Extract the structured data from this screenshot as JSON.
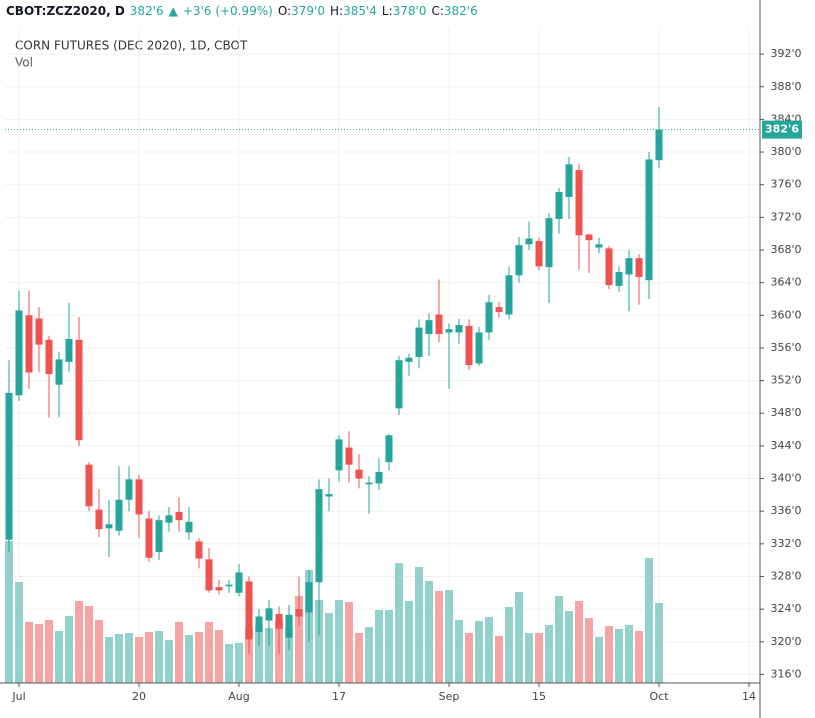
{
  "header": {
    "symbol": "CBOT:ZCZ2020, D",
    "last": "382'6",
    "arrow": "▲",
    "change": "+3'6 (+0.99%)",
    "ohlc": [
      {
        "label": "O:",
        "value": "379'0"
      },
      {
        "label": "H:",
        "value": "385'4"
      },
      {
        "label": "L:",
        "value": "378'0"
      },
      {
        "label": "C:",
        "value": "382'6"
      }
    ]
  },
  "chart_data": {
    "type": "candlestick",
    "title": "CORN FUTURES (DEC 2020), 1D, CBOT",
    "volume_label": "Vol",
    "categories": [
      null,
      "Jul",
      null,
      null,
      null,
      null,
      null,
      null,
      null,
      null,
      null,
      null,
      null,
      "20",
      null,
      null,
      null,
      null,
      null,
      null,
      null,
      null,
      null,
      "Aug",
      null,
      null,
      null,
      null,
      null,
      null,
      null,
      null,
      null,
      "17",
      null,
      null,
      null,
      null,
      null,
      null,
      null,
      null,
      null,
      null,
      "Sep",
      null,
      null,
      null,
      null,
      null,
      null,
      null,
      null,
      "15",
      null,
      null,
      null,
      null,
      null,
      null,
      null,
      null,
      null,
      null,
      null,
      "Oct",
      null,
      null,
      null,
      null,
      null,
      null,
      null,
      null,
      "14"
    ],
    "open": [
      332.5,
      350.2,
      360,
      359.6,
      357,
      351.5,
      354.3,
      357,
      341.7,
      336.2,
      333.9,
      333.6,
      337.4,
      339.9,
      335.1,
      331,
      334.6,
      335.9,
      333.4,
      332.3,
      330.1,
      326.7,
      326.8,
      326,
      327.4,
      321.2,
      322.6,
      323.4,
      320.5,
      324,
      323.6,
      327.3,
      337.8,
      341,
      343.8,
      341.1,
      339.3,
      339.4,
      342,
      348.6,
      354.3,
      354.9,
      357.7,
      360.1,
      357.9,
      357.9,
      358.7,
      354.1,
      357.9,
      361,
      360.1,
      364.9,
      368.7,
      369.1,
      365.9,
      371.8,
      374.5,
      377.8,
      369.9,
      368.3,
      368.2,
      363.6,
      365,
      367,
      364.3,
      379,
      null,
      null,
      null,
      null,
      null,
      null,
      null,
      null,
      null
    ],
    "high": [
      354.5,
      363,
      363,
      361,
      357.5,
      355.5,
      361.5,
      359.8,
      342,
      338.7,
      337.4,
      341.5,
      341.5,
      340.5,
      336,
      335.5,
      336.5,
      337.7,
      336.5,
      332.7,
      331.5,
      327.6,
      327.6,
      329.5,
      328,
      324,
      325.1,
      324.3,
      324.5,
      328,
      328.8,
      339.9,
      340,
      345.3,
      345.8,
      343,
      340.3,
      342.5,
      345.5,
      355,
      355.3,
      359.5,
      360.2,
      364.4,
      359,
      359.6,
      359.5,
      358.6,
      362.5,
      361.6,
      366,
      369.6,
      371.5,
      369.5,
      372.5,
      375.6,
      379.4,
      378.6,
      370,
      369.5,
      368.5,
      366,
      368,
      367.5,
      380,
      385.5,
      null,
      null,
      null,
      null,
      null,
      null,
      null,
      null,
      null
    ],
    "low": [
      331,
      349.5,
      351,
      353,
      347.5,
      347.5,
      353,
      344,
      336,
      332.8,
      330.4,
      333,
      336,
      332.7,
      329.8,
      330,
      333.5,
      333.5,
      332.5,
      329,
      326,
      325.8,
      326,
      325.6,
      318.5,
      319.5,
      319.5,
      318.5,
      319,
      322,
      320,
      320.8,
      336,
      339.6,
      339.5,
      338.8,
      335.7,
      338.6,
      341,
      347.8,
      352.6,
      353.5,
      355,
      356.7,
      351,
      356.5,
      353.3,
      353.8,
      357,
      359.7,
      359.5,
      364,
      368,
      365.5,
      361.5,
      370,
      371.8,
      365.6,
      365.2,
      367.6,
      363.2,
      362.9,
      360.5,
      361.3,
      362,
      378,
      null,
      null,
      null,
      null,
      null,
      null,
      null,
      null,
      null
    ],
    "close": [
      350.5,
      360.6,
      353,
      356.4,
      352.8,
      354.6,
      357.1,
      344.7,
      336.6,
      333.8,
      334.4,
      337.4,
      339.9,
      335.6,
      330.3,
      334.9,
      335.5,
      334.9,
      334.7,
      330.2,
      326.3,
      326.3,
      327,
      328.5,
      320.3,
      323.1,
      324.1,
      321.6,
      323.3,
      323.1,
      327.3,
      338.7,
      338.1,
      344.8,
      341.7,
      340,
      339.5,
      340.8,
      345.3,
      354.5,
      354.8,
      358.5,
      359.4,
      357.7,
      358.3,
      358.8,
      353.9,
      357.9,
      361.6,
      360.4,
      364.9,
      368.6,
      369.4,
      366,
      371.9,
      375.1,
      378.5,
      369.8,
      369.2,
      368.7,
      363.7,
      365.3,
      367,
      364.7,
      379.1,
      382.75,
      null,
      null,
      null,
      null,
      null,
      null,
      null,
      null,
      null
    ],
    "volume": [
      142,
      101,
      61,
      59,
      63,
      52,
      67,
      82,
      77,
      63,
      46,
      49,
      50,
      46,
      51,
      52,
      43,
      61,
      48,
      51,
      61,
      53,
      39,
      40,
      55,
      58,
      55,
      62,
      55,
      87,
      113,
      83,
      70,
      83,
      81,
      50,
      56,
      73,
      73,
      120,
      82,
      116,
      102,
      92,
      93,
      63,
      50,
      62,
      66,
      47,
      76,
      91,
      50,
      50,
      58,
      87,
      72,
      82,
      65,
      46,
      57,
      54,
      58,
      52,
      125,
      80,
      null,
      null,
      null,
      null,
      null,
      null,
      null,
      null,
      null
    ],
    "up_color": "#26a69a",
    "down_color": "#ef5350",
    "volume_up_color": "#93d2cc",
    "volume_down_color": "#f5a6a4",
    "ylim": [
      314.95,
      395.2
    ],
    "yticks": [
      {
        "value": 316,
        "label": "316'0"
      },
      {
        "value": 320,
        "label": "320'0"
      },
      {
        "value": 324,
        "label": "324'0"
      },
      {
        "value": 328,
        "label": "328'0"
      },
      {
        "value": 332,
        "label": "332'0"
      },
      {
        "value": 336,
        "label": "336'0"
      },
      {
        "value": 340,
        "label": "340'0"
      },
      {
        "value": 344,
        "label": "344'0"
      },
      {
        "value": 348,
        "label": "348'0"
      },
      {
        "value": 352,
        "label": "352'0"
      },
      {
        "value": 356,
        "label": "356'0"
      },
      {
        "value": 360,
        "label": "360'0"
      },
      {
        "value": 364,
        "label": "364'0"
      },
      {
        "value": 368,
        "label": "368'0"
      },
      {
        "value": 372,
        "label": "372'0"
      },
      {
        "value": 376,
        "label": "376'0"
      },
      {
        "value": 380,
        "label": "380'0"
      },
      {
        "value": 384,
        "label": "384'0"
      },
      {
        "value": 388,
        "label": "388'0"
      },
      {
        "value": 392,
        "label": "392'0"
      }
    ],
    "last_price": {
      "value": 382.75,
      "label": "382'6"
    },
    "grid": true
  }
}
